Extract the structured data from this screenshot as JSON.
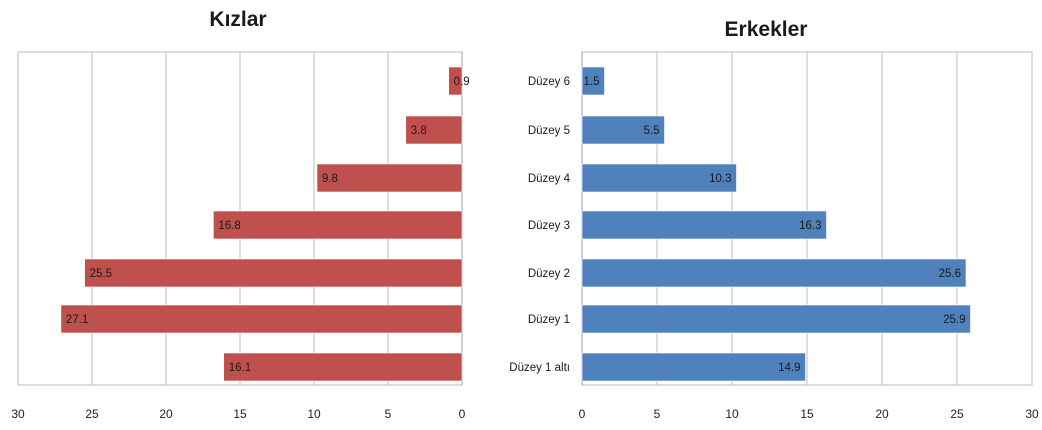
{
  "chart_data": [
    {
      "type": "bar",
      "orientation": "horizontal",
      "title": "Kızlar",
      "xlabel": "",
      "ylabel": "",
      "x_reversed": true,
      "xlim": [
        0,
        30
      ],
      "xticks": [
        "30",
        "25",
        "20",
        "15",
        "10",
        "5",
        "0"
      ],
      "grid": true,
      "legend": false,
      "color": "#C0504D",
      "categories": [
        "Düzey 6",
        "Düzey 5",
        "Düzey 4",
        "Düzey 3",
        "Düzey 2",
        "Düzey 1",
        "Düzey 1 altı"
      ],
      "category_labels_visible": false,
      "values": [
        0.9,
        3.8,
        9.8,
        16.8,
        25.5,
        27.1,
        16.1
      ],
      "value_labels": [
        "0.9",
        "3.8",
        "9.8",
        "16.8",
        "25.5",
        "27.1",
        "16.1"
      ]
    },
    {
      "type": "bar",
      "orientation": "horizontal",
      "title": "Erkekler",
      "xlabel": "",
      "ylabel": "",
      "x_reversed": false,
      "xlim": [
        0,
        30
      ],
      "xticks": [
        "0",
        "5",
        "10",
        "15",
        "20",
        "25",
        "30"
      ],
      "grid": true,
      "legend": false,
      "color": "#4F81BD",
      "categories": [
        "Düzey 6",
        "Düzey 5",
        "Düzey 4",
        "Düzey 3",
        "Düzey 2",
        "Düzey 1",
        "Düzey 1 altı"
      ],
      "category_labels_visible": true,
      "category_display": [
        "Düzey 6",
        "Düzey 5",
        "Düzey 4",
        "Düzey 3",
        "Düzey 2",
        "Düzey 1",
        "Düzey 1 altı"
      ],
      "values": [
        1.5,
        5.5,
        10.3,
        16.3,
        25.6,
        25.9,
        14.9
      ],
      "value_labels": [
        "1.5",
        "5.5",
        "10.3",
        "16.3",
        "25.6",
        "25.9",
        "14.9"
      ]
    }
  ]
}
